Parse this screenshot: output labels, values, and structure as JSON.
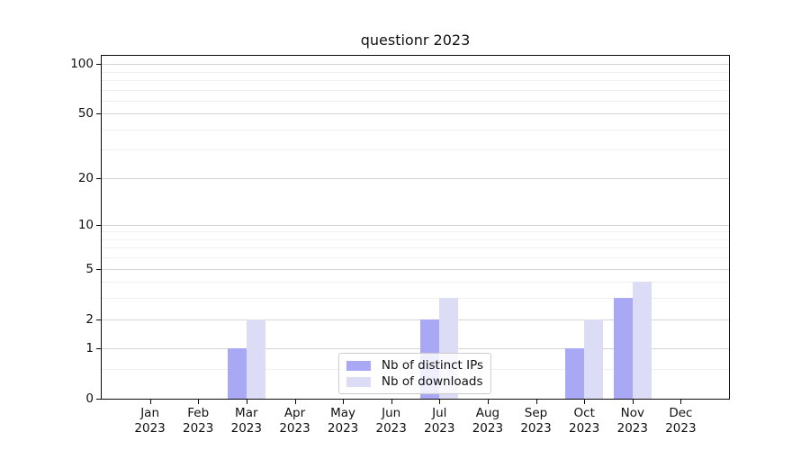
{
  "chart_data": {
    "type": "bar",
    "title": "questionr 2023",
    "categories": [
      "Jan 2023",
      "Feb 2023",
      "Mar 2023",
      "Apr 2023",
      "May 2023",
      "Jun 2023",
      "Jul 2023",
      "Aug 2023",
      "Sep 2023",
      "Oct 2023",
      "Nov 2023",
      "Dec 2023"
    ],
    "series": [
      {
        "key": "distinct-ips",
        "name": "Nb of distinct IPs",
        "color": "#a8a8f4",
        "values": [
          0,
          0,
          1,
          0,
          0,
          0,
          2,
          0,
          0,
          1,
          3,
          0
        ]
      },
      {
        "key": "downloads",
        "name": "Nb of downloads",
        "color": "#dcdcf7",
        "values": [
          0,
          0,
          2,
          0,
          0,
          0,
          3,
          0,
          0,
          2,
          4,
          0
        ]
      }
    ],
    "xlabel": "",
    "ylabel": "",
    "yscale": "log1p",
    "ylim": [
      0,
      112
    ],
    "yticks": [
      0,
      1,
      2,
      5,
      10,
      20,
      50,
      100
    ],
    "yticks_minor": [
      0.5,
      3,
      4,
      6,
      7,
      8,
      9,
      30,
      40,
      60,
      70,
      80,
      90
    ],
    "grid": true,
    "legend_position": "lower center"
  }
}
